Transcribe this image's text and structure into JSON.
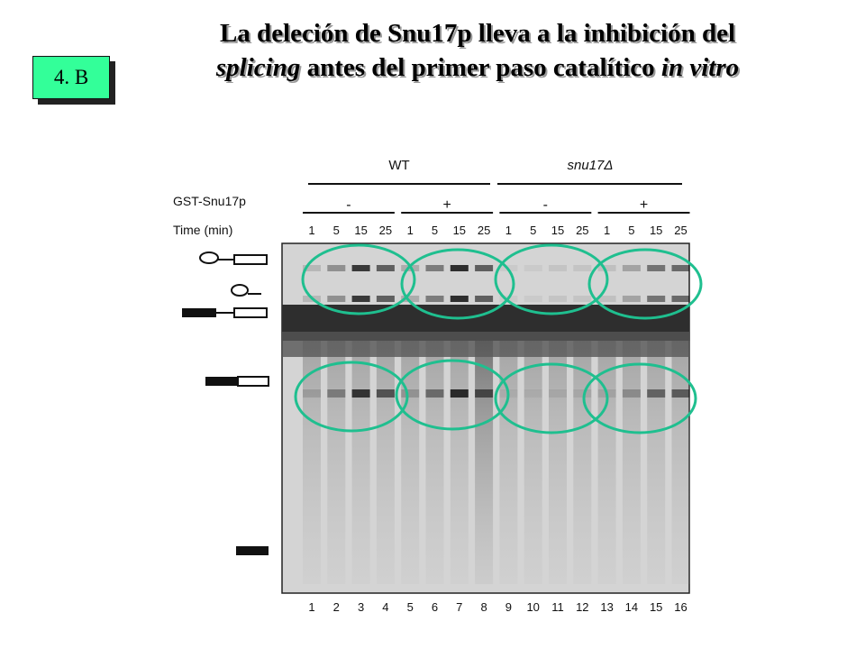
{
  "slide_tag": "4. B",
  "title": {
    "line1": "La deleción de Snu17p lleva a la inhibición del",
    "line2_em1": "splicing",
    "line2_mid": " antes del primer paso catalítico ",
    "line2_em2": "in vitro"
  },
  "figure": {
    "group_wt": "WT",
    "group_mut": "snu17Δ",
    "row_label_gst": "GST-Snu17p",
    "row_label_time": "Time (min)",
    "gst_states": [
      "-",
      "+",
      "-",
      "+"
    ],
    "times": [
      "1",
      "5",
      "15",
      "25",
      "1",
      "5",
      "15",
      "25",
      "1",
      "5",
      "15",
      "25",
      "1",
      "5",
      "15",
      "25"
    ],
    "lane_numbers": [
      "1",
      "2",
      "3",
      "4",
      "5",
      "6",
      "7",
      "8",
      "9",
      "10",
      "11",
      "12",
      "13",
      "14",
      "15",
      "16"
    ],
    "highlight_color": "#1fbf8f"
  }
}
